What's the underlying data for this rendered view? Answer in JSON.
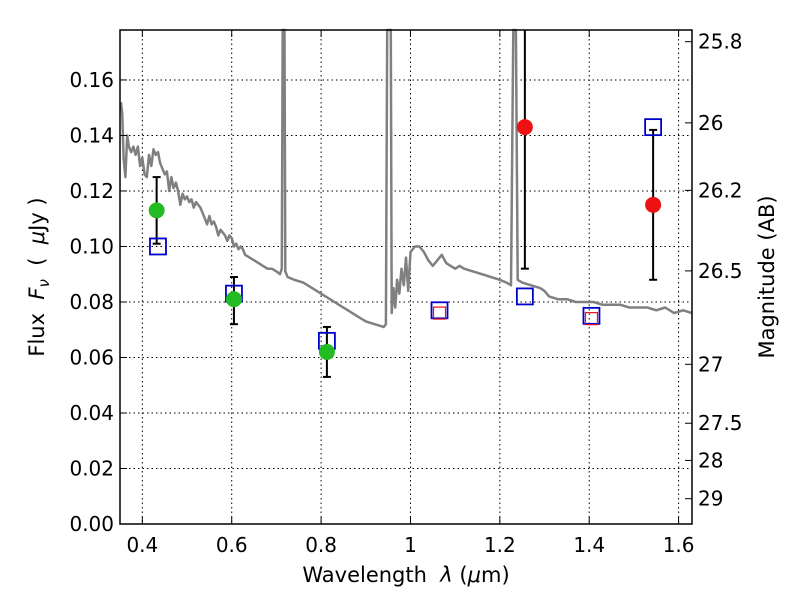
{
  "chart_data": {
    "type": "scatter",
    "xlabel_parts": [
      "Wavelength  ",
      "λ",
      " (",
      "μ",
      "m)"
    ],
    "ylabel_parts": [
      "Flux  ",
      "F",
      "ν",
      "  (  ",
      "μ",
      "Jy )"
    ],
    "y2label": "Magnitude (AB)",
    "xlim": [
      0.35,
      1.63
    ],
    "ylim": [
      0.0,
      0.178
    ],
    "xticks": [
      {
        "v": 0.4,
        "label": "0.4"
      },
      {
        "v": 0.6,
        "label": "0.6"
      },
      {
        "v": 0.8,
        "label": "0.8"
      },
      {
        "v": 1.0,
        "label": "1"
      },
      {
        "v": 1.2,
        "label": "1.2"
      },
      {
        "v": 1.4,
        "label": "1.4"
      },
      {
        "v": 1.6,
        "label": "1.6"
      }
    ],
    "yticks": [
      {
        "v": 0.0,
        "label": "0.00"
      },
      {
        "v": 0.02,
        "label": "0.02"
      },
      {
        "v": 0.04,
        "label": "0.04"
      },
      {
        "v": 0.06,
        "label": "0.06"
      },
      {
        "v": 0.08,
        "label": "0.08"
      },
      {
        "v": 0.1,
        "label": "0.10"
      },
      {
        "v": 0.12,
        "label": "0.12"
      },
      {
        "v": 0.14,
        "label": "0.14"
      },
      {
        "v": 0.16,
        "label": "0.16"
      }
    ],
    "y2ticks": [
      {
        "label": "25.8"
      },
      {
        "label": "26"
      },
      {
        "label": "26.2"
      },
      {
        "label": "26.5"
      },
      {
        "label": "27"
      },
      {
        "label": "27.5"
      },
      {
        "label": "28"
      },
      {
        "label": "29"
      }
    ],
    "grid": true,
    "spectrum": {
      "color": "#808080",
      "points": [
        [
          0.352,
          0.152
        ],
        [
          0.355,
          0.148
        ],
        [
          0.358,
          0.132
        ],
        [
          0.362,
          0.125
        ],
        [
          0.366,
          0.14
        ],
        [
          0.37,
          0.136
        ],
        [
          0.375,
          0.134
        ],
        [
          0.38,
          0.136
        ],
        [
          0.385,
          0.133
        ],
        [
          0.39,
          0.136
        ],
        [
          0.395,
          0.129
        ],
        [
          0.4,
          0.132
        ],
        [
          0.405,
          0.126
        ],
        [
          0.41,
          0.125
        ],
        [
          0.415,
          0.133
        ],
        [
          0.42,
          0.129
        ],
        [
          0.425,
          0.135
        ],
        [
          0.43,
          0.133
        ],
        [
          0.435,
          0.134
        ],
        [
          0.44,
          0.13
        ],
        [
          0.445,
          0.128
        ],
        [
          0.45,
          0.126
        ],
        [
          0.455,
          0.127
        ],
        [
          0.46,
          0.12
        ],
        [
          0.465,
          0.125
        ],
        [
          0.47,
          0.121
        ],
        [
          0.475,
          0.123
        ],
        [
          0.48,
          0.12
        ],
        [
          0.485,
          0.115
        ],
        [
          0.49,
          0.119
        ],
        [
          0.495,
          0.117
        ],
        [
          0.5,
          0.118
        ],
        [
          0.505,
          0.116
        ],
        [
          0.51,
          0.117
        ],
        [
          0.515,
          0.114
        ],
        [
          0.52,
          0.116
        ],
        [
          0.525,
          0.115
        ],
        [
          0.53,
          0.114
        ],
        [
          0.535,
          0.112
        ],
        [
          0.54,
          0.11
        ],
        [
          0.545,
          0.108
        ],
        [
          0.55,
          0.111
        ],
        [
          0.555,
          0.108
        ],
        [
          0.56,
          0.109
        ],
        [
          0.565,
          0.107
        ],
        [
          0.57,
          0.104
        ],
        [
          0.575,
          0.106
        ],
        [
          0.58,
          0.105
        ],
        [
          0.585,
          0.104
        ],
        [
          0.59,
          0.102
        ],
        [
          0.595,
          0.104
        ],
        [
          0.6,
          0.103
        ],
        [
          0.605,
          0.1
        ],
        [
          0.61,
          0.101
        ],
        [
          0.615,
          0.099
        ],
        [
          0.62,
          0.1
        ],
        [
          0.625,
          0.099
        ],
        [
          0.63,
          0.097
        ],
        [
          0.64,
          0.096
        ],
        [
          0.65,
          0.095
        ],
        [
          0.66,
          0.094
        ],
        [
          0.67,
          0.093
        ],
        [
          0.68,
          0.092
        ],
        [
          0.69,
          0.092
        ],
        [
          0.7,
          0.091
        ],
        [
          0.708,
          0.09
        ],
        [
          0.712,
          0.092
        ],
        [
          0.714,
          0.178
        ],
        [
          0.718,
          0.178
        ],
        [
          0.72,
          0.091
        ],
        [
          0.725,
          0.089
        ],
        [
          0.74,
          0.088
        ],
        [
          0.76,
          0.087
        ],
        [
          0.78,
          0.085
        ],
        [
          0.8,
          0.083
        ],
        [
          0.82,
          0.081
        ],
        [
          0.84,
          0.079
        ],
        [
          0.86,
          0.077
        ],
        [
          0.88,
          0.075
        ],
        [
          0.9,
          0.073
        ],
        [
          0.92,
          0.072
        ],
        [
          0.94,
          0.071
        ],
        [
          0.945,
          0.072
        ],
        [
          0.948,
          0.178
        ],
        [
          0.956,
          0.178
        ],
        [
          0.958,
          0.076
        ],
        [
          0.962,
          0.085
        ],
        [
          0.966,
          0.078
        ],
        [
          0.97,
          0.088
        ],
        [
          0.975,
          0.083
        ],
        [
          0.98,
          0.092
        ],
        [
          0.985,
          0.086
        ],
        [
          0.99,
          0.096
        ],
        [
          0.995,
          0.084
        ],
        [
          1.0,
          0.098
        ],
        [
          1.01,
          0.1
        ],
        [
          1.02,
          0.1
        ],
        [
          1.03,
          0.098
        ],
        [
          1.04,
          0.095
        ],
        [
          1.05,
          0.093
        ],
        [
          1.06,
          0.095
        ],
        [
          1.07,
          0.097
        ],
        [
          1.08,
          0.094
        ],
        [
          1.09,
          0.093
        ],
        [
          1.1,
          0.092
        ],
        [
          1.11,
          0.093
        ],
        [
          1.12,
          0.092
        ],
        [
          1.14,
          0.091
        ],
        [
          1.16,
          0.09
        ],
        [
          1.18,
          0.089
        ],
        [
          1.2,
          0.088
        ],
        [
          1.215,
          0.087
        ],
        [
          1.225,
          0.086
        ],
        [
          1.23,
          0.178
        ],
        [
          1.236,
          0.178
        ],
        [
          1.24,
          0.088
        ],
        [
          1.25,
          0.087
        ],
        [
          1.27,
          0.086
        ],
        [
          1.29,
          0.085
        ],
        [
          1.3,
          0.084
        ],
        [
          1.31,
          0.082
        ],
        [
          1.33,
          0.081
        ],
        [
          1.35,
          0.081
        ],
        [
          1.37,
          0.08
        ],
        [
          1.39,
          0.08
        ],
        [
          1.41,
          0.08
        ],
        [
          1.43,
          0.079
        ],
        [
          1.45,
          0.079
        ],
        [
          1.47,
          0.079
        ],
        [
          1.49,
          0.078
        ],
        [
          1.51,
          0.078
        ],
        [
          1.53,
          0.078
        ],
        [
          1.55,
          0.077
        ],
        [
          1.57,
          0.078
        ],
        [
          1.59,
          0.076
        ],
        [
          1.61,
          0.077
        ],
        [
          1.63,
          0.076
        ]
      ]
    },
    "points": [
      {
        "x": 0.432,
        "y": 0.113,
        "color": "#22bb22",
        "err": [
          0.101,
          0.125
        ]
      },
      {
        "x": 0.605,
        "y": 0.081,
        "color": "#22bb22",
        "err": [
          0.072,
          0.089
        ]
      },
      {
        "x": 0.813,
        "y": 0.062,
        "color": "#22bb22",
        "err": [
          0.053,
          0.071
        ]
      },
      {
        "x": 1.256,
        "y": 0.143,
        "color": "#ee1111",
        "err": [
          0.092,
          0.178
        ]
      },
      {
        "x": 1.543,
        "y": 0.115,
        "color": "#ee1111",
        "err": [
          0.088,
          0.142
        ]
      }
    ],
    "model_boxes": [
      {
        "x": 0.435,
        "y": 0.1,
        "color": "#0000cc"
      },
      {
        "x": 0.605,
        "y": 0.083,
        "color": "#0000cc"
      },
      {
        "x": 0.813,
        "y": 0.066,
        "color": "#0000cc"
      },
      {
        "x": 1.065,
        "y": 0.077,
        "color": "#0000cc"
      },
      {
        "x": 1.256,
        "y": 0.082,
        "color": "#0000cc"
      },
      {
        "x": 1.405,
        "y": 0.075,
        "color": "#0000cc"
      },
      {
        "x": 1.543,
        "y": 0.143,
        "color": "#0000cc"
      }
    ],
    "inner_boxes": [
      {
        "x": 1.065,
        "y": 0.076,
        "color": "#ee1111"
      },
      {
        "x": 1.405,
        "y": 0.074,
        "color": "#ee1111"
      }
    ],
    "errorbar_color": "#000000"
  }
}
